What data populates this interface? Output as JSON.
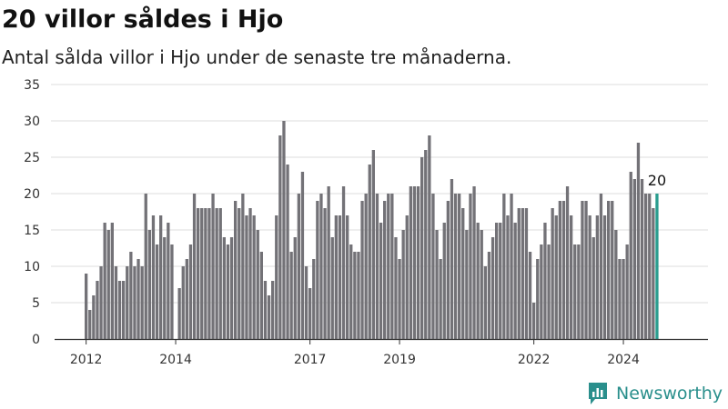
{
  "title": "20 villor såldes i Hjo",
  "subtitle": "Antal sålda villor i Hjo under de senaste tre månaderna.",
  "brand": {
    "name": "Newsworthy",
    "logo_icon": "newsworthy-chart-logo-icon"
  },
  "colors": {
    "bar": "#737277",
    "highlight": "#2a9d8f",
    "grid": "#dcdcdc",
    "axis": "#333333",
    "brand": "#2a8f8c"
  },
  "chart_data": {
    "type": "bar",
    "title": "20 villor såldes i Hjo",
    "xlabel": "",
    "ylabel": "",
    "ylim": [
      0,
      35
    ],
    "yticks": [
      0,
      5,
      10,
      15,
      20,
      25,
      30,
      35
    ],
    "xticks": [
      "2012",
      "2014",
      "2017",
      "2019",
      "2022",
      "2024"
    ],
    "grid": true,
    "start": "2012-01",
    "highlight_label": "20",
    "values": [
      9,
      4,
      6,
      8,
      10,
      16,
      15,
      16,
      10,
      8,
      8,
      10,
      12,
      10,
      11,
      10,
      20,
      15,
      17,
      13,
      17,
      14,
      16,
      13,
      0,
      7,
      10,
      11,
      13,
      20,
      18,
      18,
      18,
      18,
      20,
      18,
      18,
      14,
      13,
      14,
      19,
      18,
      20,
      17,
      18,
      17,
      15,
      12,
      8,
      6,
      8,
      17,
      28,
      30,
      24,
      12,
      14,
      20,
      23,
      10,
      7,
      11,
      19,
      20,
      18,
      21,
      14,
      17,
      17,
      21,
      17,
      13,
      12,
      12,
      19,
      20,
      24,
      26,
      20,
      16,
      19,
      20,
      20,
      14,
      11,
      15,
      17,
      21,
      21,
      21,
      25,
      26,
      28,
      20,
      15,
      11,
      16,
      19,
      22,
      20,
      20,
      18,
      15,
      20,
      21,
      16,
      15,
      10,
      12,
      14,
      16,
      16,
      20,
      17,
      20,
      16,
      18,
      18,
      18,
      12,
      5,
      11,
      13,
      16,
      13,
      18,
      17,
      19,
      19,
      21,
      17,
      13,
      13,
      19,
      19,
      17,
      14,
      17,
      20,
      17,
      19,
      19,
      15,
      11,
      11,
      13,
      23,
      22,
      27,
      22,
      20,
      20,
      18,
      20
    ]
  }
}
